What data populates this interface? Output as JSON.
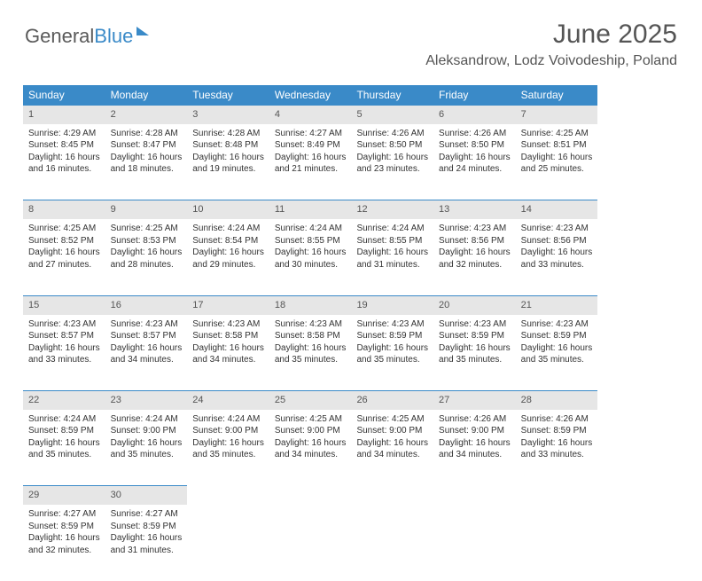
{
  "brand": {
    "part1": "General",
    "part2": "Blue"
  },
  "title": {
    "month": "June 2025",
    "location": "Aleksandrow, Lodz Voivodeship, Poland"
  },
  "colors": {
    "header_bg": "#3a8ac8",
    "header_text": "#ffffff",
    "daynum_bg": "#e6e6e6",
    "border": "#3a8ac8",
    "body_text": "#333333"
  },
  "weekdays": [
    "Sunday",
    "Monday",
    "Tuesday",
    "Wednesday",
    "Thursday",
    "Friday",
    "Saturday"
  ],
  "weeks": [
    {
      "nums": [
        "1",
        "2",
        "3",
        "4",
        "5",
        "6",
        "7"
      ],
      "cells": [
        {
          "sunrise": "Sunrise: 4:29 AM",
          "sunset": "Sunset: 8:45 PM",
          "day1": "Daylight: 16 hours",
          "day2": "and 16 minutes."
        },
        {
          "sunrise": "Sunrise: 4:28 AM",
          "sunset": "Sunset: 8:47 PM",
          "day1": "Daylight: 16 hours",
          "day2": "and 18 minutes."
        },
        {
          "sunrise": "Sunrise: 4:28 AM",
          "sunset": "Sunset: 8:48 PM",
          "day1": "Daylight: 16 hours",
          "day2": "and 19 minutes."
        },
        {
          "sunrise": "Sunrise: 4:27 AM",
          "sunset": "Sunset: 8:49 PM",
          "day1": "Daylight: 16 hours",
          "day2": "and 21 minutes."
        },
        {
          "sunrise": "Sunrise: 4:26 AM",
          "sunset": "Sunset: 8:50 PM",
          "day1": "Daylight: 16 hours",
          "day2": "and 23 minutes."
        },
        {
          "sunrise": "Sunrise: 4:26 AM",
          "sunset": "Sunset: 8:50 PM",
          "day1": "Daylight: 16 hours",
          "day2": "and 24 minutes."
        },
        {
          "sunrise": "Sunrise: 4:25 AM",
          "sunset": "Sunset: 8:51 PM",
          "day1": "Daylight: 16 hours",
          "day2": "and 25 minutes."
        }
      ]
    },
    {
      "nums": [
        "8",
        "9",
        "10",
        "11",
        "12",
        "13",
        "14"
      ],
      "cells": [
        {
          "sunrise": "Sunrise: 4:25 AM",
          "sunset": "Sunset: 8:52 PM",
          "day1": "Daylight: 16 hours",
          "day2": "and 27 minutes."
        },
        {
          "sunrise": "Sunrise: 4:25 AM",
          "sunset": "Sunset: 8:53 PM",
          "day1": "Daylight: 16 hours",
          "day2": "and 28 minutes."
        },
        {
          "sunrise": "Sunrise: 4:24 AM",
          "sunset": "Sunset: 8:54 PM",
          "day1": "Daylight: 16 hours",
          "day2": "and 29 minutes."
        },
        {
          "sunrise": "Sunrise: 4:24 AM",
          "sunset": "Sunset: 8:55 PM",
          "day1": "Daylight: 16 hours",
          "day2": "and 30 minutes."
        },
        {
          "sunrise": "Sunrise: 4:24 AM",
          "sunset": "Sunset: 8:55 PM",
          "day1": "Daylight: 16 hours",
          "day2": "and 31 minutes."
        },
        {
          "sunrise": "Sunrise: 4:23 AM",
          "sunset": "Sunset: 8:56 PM",
          "day1": "Daylight: 16 hours",
          "day2": "and 32 minutes."
        },
        {
          "sunrise": "Sunrise: 4:23 AM",
          "sunset": "Sunset: 8:56 PM",
          "day1": "Daylight: 16 hours",
          "day2": "and 33 minutes."
        }
      ]
    },
    {
      "nums": [
        "15",
        "16",
        "17",
        "18",
        "19",
        "20",
        "21"
      ],
      "cells": [
        {
          "sunrise": "Sunrise: 4:23 AM",
          "sunset": "Sunset: 8:57 PM",
          "day1": "Daylight: 16 hours",
          "day2": "and 33 minutes."
        },
        {
          "sunrise": "Sunrise: 4:23 AM",
          "sunset": "Sunset: 8:57 PM",
          "day1": "Daylight: 16 hours",
          "day2": "and 34 minutes."
        },
        {
          "sunrise": "Sunrise: 4:23 AM",
          "sunset": "Sunset: 8:58 PM",
          "day1": "Daylight: 16 hours",
          "day2": "and 34 minutes."
        },
        {
          "sunrise": "Sunrise: 4:23 AM",
          "sunset": "Sunset: 8:58 PM",
          "day1": "Daylight: 16 hours",
          "day2": "and 35 minutes."
        },
        {
          "sunrise": "Sunrise: 4:23 AM",
          "sunset": "Sunset: 8:59 PM",
          "day1": "Daylight: 16 hours",
          "day2": "and 35 minutes."
        },
        {
          "sunrise": "Sunrise: 4:23 AM",
          "sunset": "Sunset: 8:59 PM",
          "day1": "Daylight: 16 hours",
          "day2": "and 35 minutes."
        },
        {
          "sunrise": "Sunrise: 4:23 AM",
          "sunset": "Sunset: 8:59 PM",
          "day1": "Daylight: 16 hours",
          "day2": "and 35 minutes."
        }
      ]
    },
    {
      "nums": [
        "22",
        "23",
        "24",
        "25",
        "26",
        "27",
        "28"
      ],
      "cells": [
        {
          "sunrise": "Sunrise: 4:24 AM",
          "sunset": "Sunset: 8:59 PM",
          "day1": "Daylight: 16 hours",
          "day2": "and 35 minutes."
        },
        {
          "sunrise": "Sunrise: 4:24 AM",
          "sunset": "Sunset: 9:00 PM",
          "day1": "Daylight: 16 hours",
          "day2": "and 35 minutes."
        },
        {
          "sunrise": "Sunrise: 4:24 AM",
          "sunset": "Sunset: 9:00 PM",
          "day1": "Daylight: 16 hours",
          "day2": "and 35 minutes."
        },
        {
          "sunrise": "Sunrise: 4:25 AM",
          "sunset": "Sunset: 9:00 PM",
          "day1": "Daylight: 16 hours",
          "day2": "and 34 minutes."
        },
        {
          "sunrise": "Sunrise: 4:25 AM",
          "sunset": "Sunset: 9:00 PM",
          "day1": "Daylight: 16 hours",
          "day2": "and 34 minutes."
        },
        {
          "sunrise": "Sunrise: 4:26 AM",
          "sunset": "Sunset: 9:00 PM",
          "day1": "Daylight: 16 hours",
          "day2": "and 34 minutes."
        },
        {
          "sunrise": "Sunrise: 4:26 AM",
          "sunset": "Sunset: 8:59 PM",
          "day1": "Daylight: 16 hours",
          "day2": "and 33 minutes."
        }
      ]
    },
    {
      "nums": [
        "29",
        "30",
        "",
        "",
        "",
        "",
        ""
      ],
      "cells": [
        {
          "sunrise": "Sunrise: 4:27 AM",
          "sunset": "Sunset: 8:59 PM",
          "day1": "Daylight: 16 hours",
          "day2": "and 32 minutes."
        },
        {
          "sunrise": "Sunrise: 4:27 AM",
          "sunset": "Sunset: 8:59 PM",
          "day1": "Daylight: 16 hours",
          "day2": "and 31 minutes."
        },
        null,
        null,
        null,
        null,
        null
      ]
    }
  ]
}
